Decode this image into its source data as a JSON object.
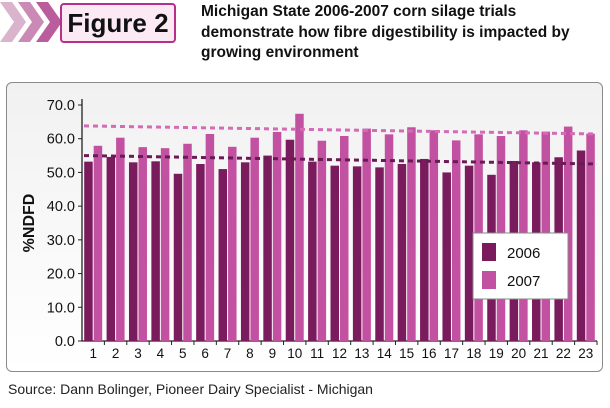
{
  "figure_label": "Figure 2",
  "headline": "Michigan State 2006-2007 corn silage trials demonstrate how fibre digestibility is impacted by growing environment",
  "source": "Source: Dann Bolinger, Pioneer Dairy Specialist - Michigan",
  "colors": {
    "series_2006": "#7a1b5e",
    "series_2007": "#c351a2",
    "trend_2006": "#6a1a55",
    "trend_2007": "#d46bb5",
    "accent": "#b62f8b"
  },
  "chart_data": {
    "type": "bar",
    "categories": [
      "1",
      "2",
      "3",
      "4",
      "5",
      "6",
      "7",
      "8",
      "9",
      "10",
      "11",
      "12",
      "13",
      "14",
      "15",
      "16",
      "17",
      "18",
      "19",
      "20",
      "21",
      "22",
      "23"
    ],
    "series": [
      {
        "name": "2006",
        "values": [
          53.2,
          54.6,
          53.0,
          53.3,
          49.6,
          52.5,
          51.0,
          53.0,
          55.0,
          59.7,
          53.2,
          52.0,
          51.8,
          51.5,
          52.5,
          54.0,
          50.0,
          52.0,
          49.3,
          53.4,
          53.0,
          54.5,
          56.5
        ]
      },
      {
        "name": "2007",
        "values": [
          57.9,
          60.3,
          57.5,
          57.2,
          58.5,
          61.4,
          57.6,
          60.3,
          62.0,
          67.4,
          59.4,
          60.8,
          63.0,
          61.3,
          63.4,
          62.5,
          59.5,
          61.3,
          60.8,
          62.5,
          62.1,
          63.6,
          61.5
        ]
      }
    ],
    "trendlines": [
      {
        "series": "2006",
        "start": 55.0,
        "end": 52.5
      },
      {
        "series": "2007",
        "start": 63.8,
        "end": 61.4
      }
    ],
    "xlabel": "",
    "ylabel": "%NDFD",
    "ylim": [
      0,
      70
    ],
    "yticks": [
      "0.0",
      "10.0",
      "20.0",
      "30.0",
      "40.0",
      "50.0",
      "60.0",
      "70.0"
    ],
    "legend": [
      "2006",
      "2007"
    ],
    "legend_position": "bottom-right",
    "grid": false
  }
}
